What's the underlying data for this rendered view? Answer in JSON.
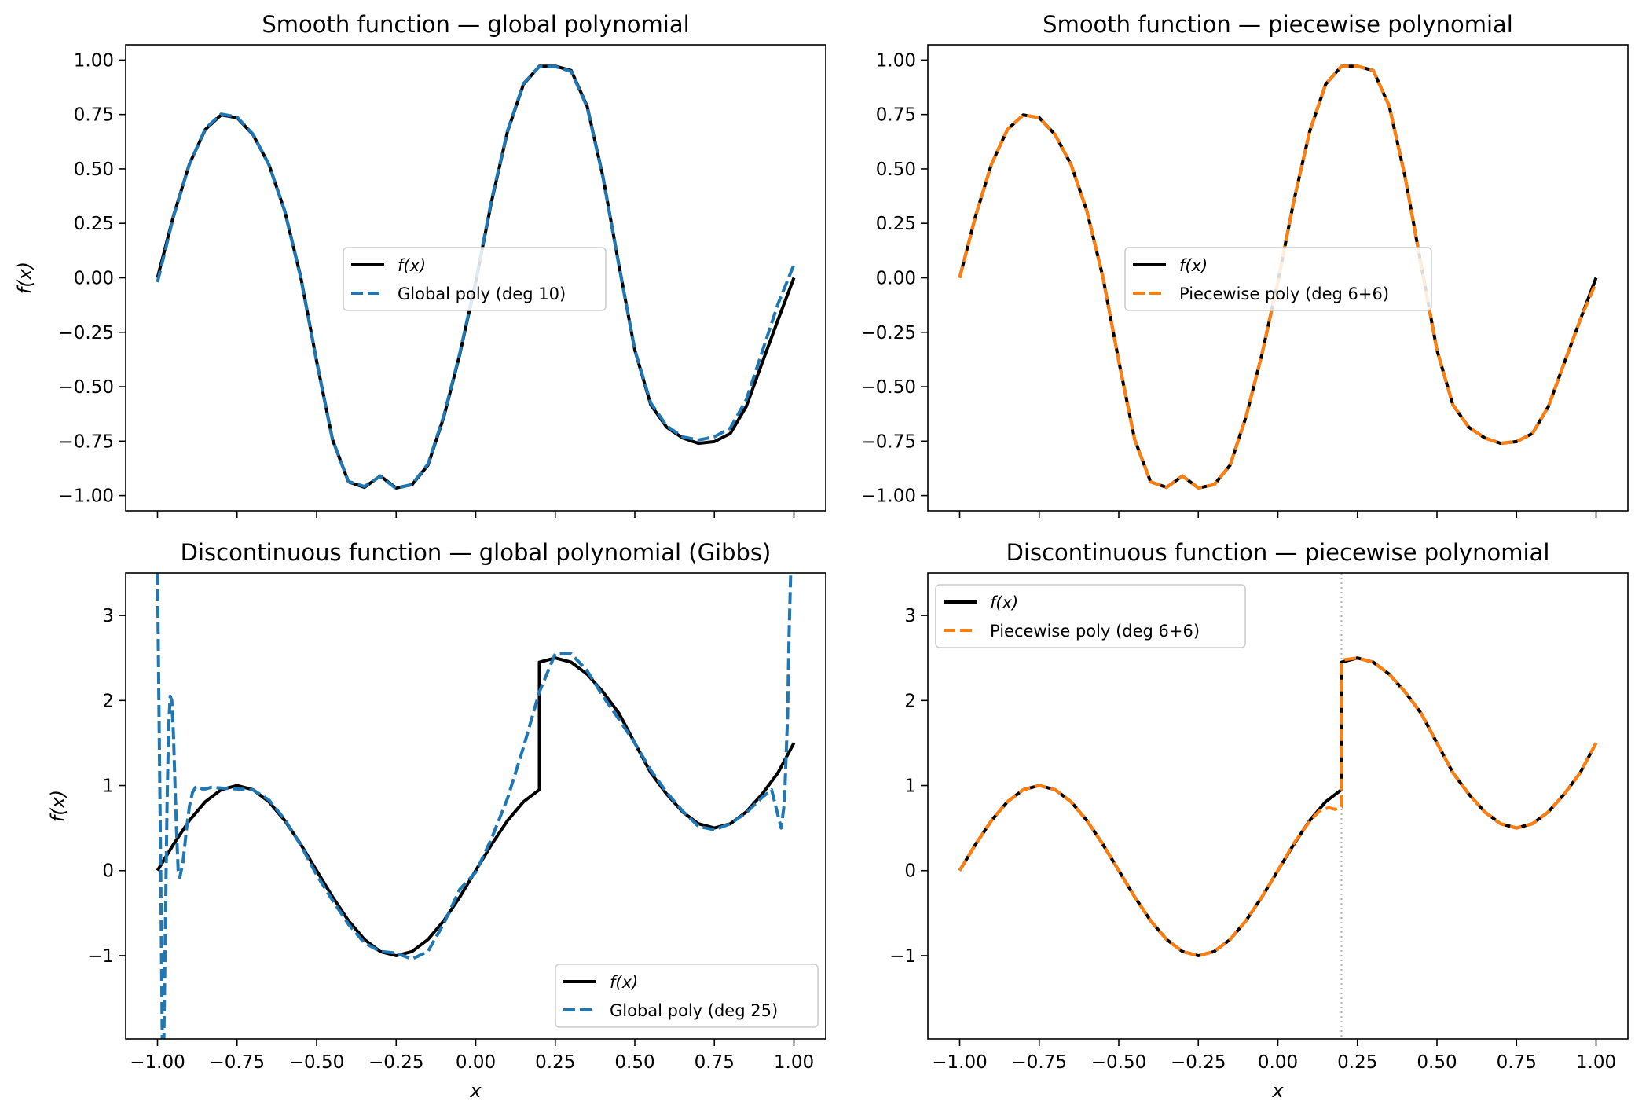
{
  "colors": {
    "true_fn": "#000000",
    "global_fit": "#1f77b4",
    "piecewise_fit": "#ff7f0e",
    "breakpoint": "#b3b3b3",
    "axes": "#000000",
    "background": "#ffffff"
  },
  "chart_data": [
    {
      "type": "line",
      "title": "Smooth function — global polynomial",
      "xlabel": "",
      "ylabel": "f(x)",
      "xlim": [
        -1.1,
        1.1
      ],
      "ylim": [
        -1.07,
        1.07
      ],
      "xticks": [
        -1.0,
        -0.75,
        -0.5,
        -0.25,
        0.0,
        0.25,
        0.5,
        0.75,
        1.0
      ],
      "xticklabels": [
        "",
        "",
        "",
        "",
        "",
        "",
        "",
        "",
        ""
      ],
      "yticks": [
        -1.0,
        -0.75,
        -0.5,
        -0.25,
        0.0,
        0.25,
        0.5,
        0.75,
        1.0
      ],
      "yticklabels": [
        "−1.00",
        "−0.75",
        "−0.50",
        "−0.25",
        "0.00",
        "0.25",
        "0.50",
        "0.75",
        "1.00"
      ],
      "legend_position": "center",
      "legend": [
        {
          "label": "f(x)",
          "style": "solid",
          "color": "#000000",
          "italic": true
        },
        {
          "label": "Global poly (deg 10)",
          "style": "dashed",
          "color": "#1f77b4",
          "italic": false
        }
      ],
      "breakpoint": null,
      "series": [
        {
          "name": "f(x)",
          "style": "solid",
          "color": "#000000",
          "x": [
            -1.0,
            -0.95,
            -0.9,
            -0.85,
            -0.8,
            -0.75,
            -0.7,
            -0.65,
            -0.6,
            -0.55,
            -0.5,
            -0.45,
            -0.4,
            -0.35,
            -0.3,
            -0.25,
            -0.2,
            -0.15,
            -0.1,
            -0.05,
            0.0,
            0.05,
            0.1,
            0.15,
            0.2,
            0.25,
            0.3,
            0.35,
            0.4,
            0.45,
            0.5,
            0.55,
            0.6,
            0.65,
            0.7,
            0.75,
            0.8,
            0.85,
            0.9,
            0.95,
            1.0
          ],
          "y": [
            0.0,
            0.284,
            0.522,
            0.681,
            0.748,
            0.735,
            0.658,
            0.52,
            0.306,
            0.004,
            -0.382,
            -0.743,
            -0.937,
            -0.962,
            -0.91,
            -0.965,
            -0.95,
            -0.86,
            -0.638,
            -0.35,
            -0.02,
            0.353,
            0.672,
            0.889,
            0.972,
            0.972,
            0.952,
            0.788,
            0.463,
            0.06,
            -0.332,
            -0.583,
            -0.686,
            -0.735,
            -0.76,
            -0.752,
            -0.715,
            -0.591,
            -0.391,
            -0.193,
            0.0
          ]
        },
        {
          "name": "Global poly (deg 10)",
          "style": "dashed",
          "color": "#1f77b4",
          "x": [
            -1.0,
            -0.95,
            -0.9,
            -0.85,
            -0.8,
            -0.75,
            -0.7,
            -0.65,
            -0.6,
            -0.55,
            -0.5,
            -0.45,
            -0.4,
            -0.35,
            -0.3,
            -0.25,
            -0.2,
            -0.15,
            -0.1,
            -0.05,
            0.0,
            0.05,
            0.1,
            0.15,
            0.2,
            0.25,
            0.3,
            0.35,
            0.4,
            0.45,
            0.5,
            0.55,
            0.6,
            0.65,
            0.7,
            0.75,
            0.8,
            0.85,
            0.9,
            0.95,
            1.0
          ],
          "y": [
            -0.02,
            0.28,
            0.52,
            0.685,
            0.752,
            0.738,
            0.66,
            0.52,
            0.305,
            0.0,
            -0.385,
            -0.745,
            -0.935,
            -0.958,
            -0.912,
            -0.968,
            -0.948,
            -0.855,
            -0.632,
            -0.345,
            -0.015,
            0.36,
            0.676,
            0.892,
            0.97,
            0.97,
            0.948,
            0.784,
            0.46,
            0.058,
            -0.33,
            -0.575,
            -0.68,
            -0.73,
            -0.745,
            -0.73,
            -0.69,
            -0.56,
            -0.34,
            -0.12,
            0.06
          ]
        }
      ]
    },
    {
      "type": "line",
      "title": "Smooth function — piecewise polynomial",
      "xlabel": "",
      "ylabel": "",
      "xlim": [
        -1.1,
        1.1
      ],
      "ylim": [
        -1.07,
        1.07
      ],
      "xticks": [
        -1.0,
        -0.75,
        -0.5,
        -0.25,
        0.0,
        0.25,
        0.5,
        0.75,
        1.0
      ],
      "xticklabels": [
        "",
        "",
        "",
        "",
        "",
        "",
        "",
        "",
        ""
      ],
      "yticks": [
        -1.0,
        -0.75,
        -0.5,
        -0.25,
        0.0,
        0.25,
        0.5,
        0.75,
        1.0
      ],
      "yticklabels": [
        "−1.00",
        "−0.75",
        "−0.50",
        "−0.25",
        "0.00",
        "0.25",
        "0.50",
        "0.75",
        "1.00"
      ],
      "legend_position": "center",
      "legend": [
        {
          "label": "f(x)",
          "style": "solid",
          "color": "#000000",
          "italic": true
        },
        {
          "label": "Piecewise poly (deg 6+6)",
          "style": "dashed",
          "color": "#ff7f0e",
          "italic": false
        }
      ],
      "breakpoint": null,
      "series": [
        {
          "name": "f(x)",
          "style": "solid",
          "color": "#000000",
          "x": [
            -1.0,
            -0.95,
            -0.9,
            -0.85,
            -0.8,
            -0.75,
            -0.7,
            -0.65,
            -0.6,
            -0.55,
            -0.5,
            -0.45,
            -0.4,
            -0.35,
            -0.3,
            -0.25,
            -0.2,
            -0.15,
            -0.1,
            -0.05,
            0.0,
            0.05,
            0.1,
            0.15,
            0.2,
            0.25,
            0.3,
            0.35,
            0.4,
            0.45,
            0.5,
            0.55,
            0.6,
            0.65,
            0.7,
            0.75,
            0.8,
            0.85,
            0.9,
            0.95,
            1.0
          ],
          "y": [
            0.0,
            0.284,
            0.522,
            0.681,
            0.748,
            0.735,
            0.658,
            0.52,
            0.306,
            0.004,
            -0.382,
            -0.743,
            -0.937,
            -0.962,
            -0.91,
            -0.965,
            -0.95,
            -0.86,
            -0.638,
            -0.35,
            -0.02,
            0.353,
            0.672,
            0.889,
            0.972,
            0.972,
            0.952,
            0.788,
            0.463,
            0.06,
            -0.332,
            -0.583,
            -0.686,
            -0.735,
            -0.76,
            -0.752,
            -0.715,
            -0.591,
            -0.391,
            -0.193,
            0.0
          ]
        },
        {
          "name": "Piecewise poly (deg 6+6)",
          "style": "dashed",
          "color": "#ff7f0e",
          "x": [
            -1.0,
            -0.95,
            -0.9,
            -0.85,
            -0.8,
            -0.75,
            -0.7,
            -0.65,
            -0.6,
            -0.55,
            -0.5,
            -0.45,
            -0.4,
            -0.35,
            -0.3,
            -0.25,
            -0.2,
            -0.15,
            -0.1,
            -0.05,
            0.0,
            0.05,
            0.1,
            0.15,
            0.2,
            0.25,
            0.3,
            0.35,
            0.4,
            0.45,
            0.5,
            0.55,
            0.6,
            0.65,
            0.7,
            0.75,
            0.8,
            0.85,
            0.9,
            0.95,
            1.0
          ],
          "y": [
            0.0,
            0.284,
            0.522,
            0.681,
            0.748,
            0.735,
            0.658,
            0.52,
            0.306,
            0.004,
            -0.382,
            -0.743,
            -0.937,
            -0.962,
            -0.91,
            -0.965,
            -0.95,
            -0.86,
            -0.638,
            -0.35,
            -0.02,
            0.353,
            0.672,
            0.889,
            0.972,
            0.972,
            0.952,
            0.788,
            0.463,
            0.06,
            -0.332,
            -0.583,
            -0.686,
            -0.735,
            -0.76,
            -0.752,
            -0.715,
            -0.591,
            -0.391,
            -0.193,
            -0.02
          ]
        }
      ]
    },
    {
      "type": "line",
      "title": "Discontinuous function — global polynomial (Gibbs)",
      "xlabel": "x",
      "ylabel": "f(x)",
      "xlim": [
        -1.1,
        1.1
      ],
      "ylim": [
        -1.98,
        3.5
      ],
      "xticks": [
        -1.0,
        -0.75,
        -0.5,
        -0.25,
        0.0,
        0.25,
        0.5,
        0.75,
        1.0
      ],
      "xticklabels": [
        "−1.00",
        "−0.75",
        "−0.50",
        "−0.25",
        "0.00",
        "0.25",
        "0.50",
        "0.75",
        "1.00"
      ],
      "yticks": [
        -1,
        0,
        1,
        2,
        3
      ],
      "yticklabels": [
        "−1",
        "0",
        "1",
        "2",
        "3"
      ],
      "legend_position": "lower right",
      "legend": [
        {
          "label": "f(x)",
          "style": "solid",
          "color": "#000000",
          "italic": true
        },
        {
          "label": "Global poly (deg 25)",
          "style": "dashed",
          "color": "#1f77b4",
          "italic": false
        }
      ],
      "breakpoint": null,
      "series": [
        {
          "name": "f(x)",
          "style": "solid",
          "color": "#000000",
          "x": [
            -1.0,
            -0.95,
            -0.9,
            -0.85,
            -0.8,
            -0.75,
            -0.7,
            -0.65,
            -0.6,
            -0.55,
            -0.5,
            -0.45,
            -0.4,
            -0.35,
            -0.3,
            -0.25,
            -0.2,
            -0.15,
            -0.1,
            -0.05,
            0.0,
            0.05,
            0.1,
            0.15,
            0.2,
            0.2,
            0.25,
            0.3,
            0.35,
            0.4,
            0.45,
            0.5,
            0.55,
            0.6,
            0.65,
            0.7,
            0.75,
            0.8,
            0.85,
            0.9,
            0.95,
            1.0
          ],
          "y": [
            0.0,
            0.309,
            0.588,
            0.809,
            0.951,
            1.0,
            0.951,
            0.809,
            0.588,
            0.309,
            0.0,
            -0.309,
            -0.588,
            -0.809,
            -0.951,
            -1.0,
            -0.951,
            -0.809,
            -0.588,
            -0.309,
            0.0,
            0.309,
            0.588,
            0.809,
            0.951,
            2.45,
            2.5,
            2.45,
            2.31,
            2.1,
            1.85,
            1.5,
            1.15,
            0.9,
            0.69,
            0.55,
            0.5,
            0.55,
            0.69,
            0.9,
            1.15,
            1.5
          ]
        },
        {
          "name": "Global poly (deg 25)",
          "style": "dashed",
          "color": "#1f77b4",
          "x": [
            -1.0,
            -0.99,
            -0.985,
            -0.98,
            -0.975,
            -0.97,
            -0.965,
            -0.96,
            -0.955,
            -0.95,
            -0.945,
            -0.94,
            -0.935,
            -0.93,
            -0.92,
            -0.91,
            -0.9,
            -0.89,
            -0.88,
            -0.87,
            -0.86,
            -0.85,
            -0.83,
            -0.8,
            -0.75,
            -0.7,
            -0.65,
            -0.6,
            -0.55,
            -0.5,
            -0.45,
            -0.4,
            -0.35,
            -0.3,
            -0.25,
            -0.2,
            -0.15,
            -0.1,
            -0.05,
            0.0,
            0.05,
            0.1,
            0.15,
            0.2,
            0.25,
            0.3,
            0.35,
            0.4,
            0.45,
            0.5,
            0.55,
            0.6,
            0.65,
            0.7,
            0.75,
            0.8,
            0.85,
            0.9,
            0.93,
            0.95,
            0.96,
            0.97,
            0.98,
            0.985,
            0.99
          ],
          "y": [
            3.5,
            0.0,
            -1.98,
            -1.98,
            -0.6,
            0.8,
            1.7,
            2.05,
            2.0,
            1.6,
            1.0,
            0.45,
            0.0,
            -0.08,
            0.1,
            0.45,
            0.75,
            0.92,
            0.98,
            0.98,
            0.96,
            0.96,
            0.98,
            0.97,
            0.96,
            0.95,
            0.83,
            0.6,
            0.3,
            -0.05,
            -0.35,
            -0.63,
            -0.85,
            -0.95,
            -0.97,
            -1.04,
            -0.95,
            -0.62,
            -0.22,
            -0.02,
            0.38,
            0.85,
            1.45,
            2.1,
            2.55,
            2.55,
            2.35,
            2.05,
            1.78,
            1.5,
            1.18,
            0.92,
            0.7,
            0.52,
            0.48,
            0.55,
            0.68,
            0.86,
            0.95,
            0.65,
            0.5,
            0.8,
            1.8,
            2.8,
            3.5
          ]
        }
      ]
    },
    {
      "type": "line",
      "title": "Discontinuous function — piecewise polynomial",
      "xlabel": "x",
      "ylabel": "",
      "xlim": [
        -1.1,
        1.1
      ],
      "ylim": [
        -1.98,
        3.5
      ],
      "xticks": [
        -1.0,
        -0.75,
        -0.5,
        -0.25,
        0.0,
        0.25,
        0.5,
        0.75,
        1.0
      ],
      "xticklabels": [
        "−1.00",
        "−0.75",
        "−0.50",
        "−0.25",
        "0.00",
        "0.25",
        "0.50",
        "0.75",
        "1.00"
      ],
      "yticks": [
        -1,
        0,
        1,
        2,
        3
      ],
      "yticklabels": [
        "−1",
        "0",
        "1",
        "2",
        "3"
      ],
      "legend_position": "upper left",
      "legend": [
        {
          "label": "f(x)",
          "style": "solid",
          "color": "#000000",
          "italic": true
        },
        {
          "label": "Piecewise poly (deg 6+6)",
          "style": "dashed",
          "color": "#ff7f0e",
          "italic": false
        }
      ],
      "breakpoint": 0.2,
      "series": [
        {
          "name": "f(x)",
          "style": "solid",
          "color": "#000000",
          "x": [
            -1.0,
            -0.95,
            -0.9,
            -0.85,
            -0.8,
            -0.75,
            -0.7,
            -0.65,
            -0.6,
            -0.55,
            -0.5,
            -0.45,
            -0.4,
            -0.35,
            -0.3,
            -0.25,
            -0.2,
            -0.15,
            -0.1,
            -0.05,
            0.0,
            0.05,
            0.1,
            0.15,
            0.2,
            0.2,
            0.25,
            0.3,
            0.35,
            0.4,
            0.45,
            0.5,
            0.55,
            0.6,
            0.65,
            0.7,
            0.75,
            0.8,
            0.85,
            0.9,
            0.95,
            1.0
          ],
          "y": [
            0.0,
            0.309,
            0.588,
            0.809,
            0.951,
            1.0,
            0.951,
            0.809,
            0.588,
            0.309,
            0.0,
            -0.309,
            -0.588,
            -0.809,
            -0.951,
            -1.0,
            -0.951,
            -0.809,
            -0.588,
            -0.309,
            0.0,
            0.309,
            0.588,
            0.809,
            0.951,
            2.45,
            2.5,
            2.45,
            2.31,
            2.1,
            1.85,
            1.5,
            1.15,
            0.9,
            0.69,
            0.55,
            0.5,
            0.55,
            0.69,
            0.9,
            1.15,
            1.5
          ]
        },
        {
          "name": "Piecewise poly (deg 6+6)",
          "style": "dashed",
          "color": "#ff7f0e",
          "x": [
            -1.0,
            -0.95,
            -0.9,
            -0.85,
            -0.8,
            -0.75,
            -0.7,
            -0.65,
            -0.6,
            -0.55,
            -0.5,
            -0.45,
            -0.4,
            -0.35,
            -0.3,
            -0.25,
            -0.2,
            -0.15,
            -0.1,
            -0.05,
            0.0,
            0.05,
            0.1,
            0.13,
            0.16,
            0.18,
            0.2,
            0.2,
            0.21,
            0.25,
            0.3,
            0.35,
            0.4,
            0.45,
            0.5,
            0.55,
            0.6,
            0.65,
            0.7,
            0.75,
            0.8,
            0.85,
            0.9,
            0.95,
            1.0
          ],
          "y": [
            0.0,
            0.309,
            0.588,
            0.809,
            0.951,
            1.0,
            0.951,
            0.809,
            0.588,
            0.309,
            0.0,
            -0.309,
            -0.588,
            -0.809,
            -0.951,
            -1.0,
            -0.951,
            -0.809,
            -0.588,
            -0.309,
            0.0,
            0.32,
            0.58,
            0.7,
            0.74,
            0.72,
            0.75,
            2.45,
            2.48,
            2.5,
            2.45,
            2.31,
            2.1,
            1.85,
            1.5,
            1.15,
            0.9,
            0.69,
            0.55,
            0.5,
            0.55,
            0.69,
            0.9,
            1.15,
            1.5
          ]
        }
      ]
    }
  ]
}
